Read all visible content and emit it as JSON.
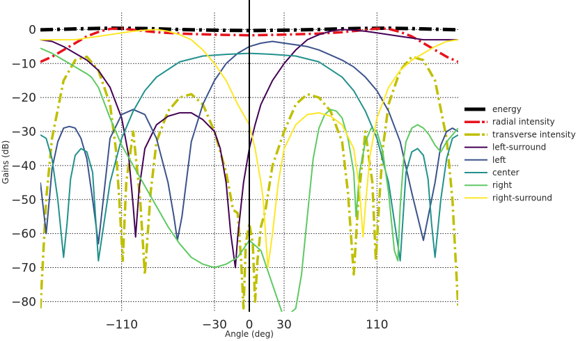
{
  "chart_data": {
    "type": "line",
    "title": "",
    "xlabel": "Angle (deg)",
    "ylabel": "Gains (dB)",
    "xlim": [
      -180,
      180
    ],
    "ylim": [
      -83,
      5
    ],
    "xticks": [
      -110,
      -30,
      0,
      30,
      110
    ],
    "yticks": [
      0,
      -10,
      -20,
      -30,
      -40,
      -50,
      -60,
      -70,
      -80
    ],
    "xtick_labels": [
      "−110",
      "−30",
      "0",
      "30",
      "110"
    ],
    "ytick_labels": [
      "0",
      "−10",
      "−20",
      "−30",
      "−40",
      "−50",
      "−60",
      "−70",
      "−80"
    ],
    "grid": true,
    "legend_position": "right",
    "series": [
      {
        "name": "energy",
        "color": "#000000",
        "style": "dashdot",
        "width": 5,
        "x": [
          -180,
          -150,
          -120,
          -90,
          -60,
          -30,
          0,
          30,
          60,
          90,
          120,
          150,
          180
        ],
        "y": [
          -0.1,
          0.2,
          0.4,
          0.3,
          0.0,
          -0.2,
          -0.3,
          -0.2,
          0.0,
          0.3,
          0.4,
          0.2,
          -0.1
        ]
      },
      {
        "name": "radial intensity",
        "color": "#e8131d",
        "style": "dashdot",
        "width": 3.5,
        "x": [
          -180,
          -170,
          -160,
          -150,
          -140,
          -130,
          -120,
          -110,
          -100,
          -80,
          -60,
          -30,
          0,
          30,
          60,
          80,
          100,
          110,
          120,
          130,
          140,
          150,
          160,
          170,
          180
        ],
        "y": [
          -9.5,
          -8.0,
          -6.0,
          -4.0,
          -2.0,
          -0.7,
          0.2,
          0.3,
          -0.1,
          -0.8,
          -1.2,
          -1.5,
          -1.7,
          -1.5,
          -1.2,
          -0.8,
          -0.1,
          0.3,
          0.2,
          -0.7,
          -2.0,
          -4.0,
          -6.0,
          -8.0,
          -9.5
        ]
      },
      {
        "name": "transverse intensity",
        "color": "#bfbf00",
        "style": "dashdot",
        "width": 3.5,
        "x": [
          -180,
          -175,
          -170,
          -160,
          -150,
          -140,
          -130,
          -120,
          -115,
          -112,
          -109,
          -106,
          -100,
          -94,
          -90,
          -85,
          -80,
          -70,
          -60,
          -50,
          -40,
          -30,
          -20,
          -14,
          -10,
          -7,
          -5,
          -3,
          0,
          3,
          5,
          7,
          10,
          14,
          20,
          30,
          40,
          50,
          60,
          70,
          80,
          85,
          90,
          94,
          100,
          106,
          109,
          112,
          115,
          120,
          130,
          140,
          150,
          160,
          170,
          175,
          180
        ],
        "y": [
          -82,
          -50,
          -32,
          -15,
          -9,
          -8,
          -12,
          -22,
          -35,
          -50,
          -68,
          -45,
          -30,
          -50,
          -72,
          -48,
          -33,
          -24,
          -20,
          -19,
          -22,
          -30,
          -42,
          -53,
          -54,
          -68,
          -82,
          -63,
          -57,
          -63,
          -80,
          -68,
          -58,
          -53,
          -40,
          -30,
          -22,
          -19,
          -20,
          -24,
          -33,
          -48,
          -72,
          -50,
          -30,
          -45,
          -68,
          -50,
          -35,
          -22,
          -12,
          -8,
          -9,
          -15,
          -32,
          -50,
          -82
        ]
      },
      {
        "name": "left-surround",
        "color": "#440154",
        "style": "solid",
        "width": 2,
        "x": [
          -180,
          -170,
          -160,
          -150,
          -140,
          -130,
          -120,
          -110,
          -104,
          -100,
          -98,
          -95,
          -90,
          -80,
          -70,
          -60,
          -50,
          -40,
          -30,
          -25,
          -20,
          -16,
          -12,
          -10,
          -5,
          0,
          5,
          10,
          20,
          30,
          40,
          50,
          60,
          70,
          80,
          90,
          100,
          110,
          120,
          130,
          140,
          150,
          160,
          170,
          180
        ],
        "y": [
          -3,
          -3.5,
          -5,
          -7,
          -9,
          -12,
          -17,
          -26,
          -37,
          -52,
          -61,
          -47,
          -35,
          -28,
          -25.5,
          -24.5,
          -24.5,
          -26.5,
          -30,
          -35,
          -45,
          -60,
          -70,
          -61,
          -45,
          -35,
          -28,
          -22,
          -15,
          -10,
          -6,
          -3,
          -1.5,
          -0.5,
          0,
          -0.2,
          -0.5,
          -1,
          -1.5,
          -2,
          -2.5,
          -3,
          -3,
          -3,
          -3
        ]
      },
      {
        "name": "left",
        "color": "#3b528b",
        "style": "solid",
        "width": 2,
        "x": [
          -180,
          -175,
          -172,
          -170,
          -165,
          -160,
          -155,
          -150,
          -145,
          -140,
          -135,
          -130,
          -120,
          -110,
          -100,
          -90,
          -80,
          -70,
          -65,
          -62,
          -58,
          -50,
          -40,
          -30,
          -20,
          -10,
          0,
          10,
          20,
          30,
          40,
          50,
          60,
          70,
          80,
          90,
          100,
          110,
          120,
          130,
          140,
          150,
          160,
          165,
          170,
          175,
          180
        ],
        "y": [
          -45,
          -60,
          -49,
          -41,
          -33,
          -29,
          -28.5,
          -29,
          -32,
          -38,
          -50,
          -63,
          -32,
          -25,
          -23.5,
          -25,
          -32,
          -45,
          -55,
          -62,
          -55,
          -33,
          -22,
          -15,
          -10,
          -7,
          -5,
          -4,
          -3.5,
          -4,
          -4.5,
          -5,
          -6,
          -7.5,
          -9,
          -11,
          -14,
          -18,
          -24,
          -33,
          -48,
          -62,
          -45,
          -34,
          -30,
          -29,
          -30
        ]
      },
      {
        "name": "center",
        "color": "#21918c",
        "style": "solid",
        "width": 2,
        "x": [
          -180,
          -175,
          -170,
          -165,
          -160,
          -157,
          -154,
          -150,
          -145,
          -140,
          -135,
          -130,
          -120,
          -110,
          -100,
          -90,
          -80,
          -60,
          -40,
          -20,
          0,
          20,
          40,
          60,
          80,
          90,
          100,
          110,
          120,
          130,
          135,
          140,
          145,
          150,
          154,
          157,
          160,
          165,
          170,
          175,
          180
        ],
        "y": [
          -31,
          -32,
          -38,
          -50,
          -67,
          -57,
          -44,
          -37,
          -35,
          -36,
          -42,
          -68,
          -45,
          -32,
          -24,
          -18,
          -14,
          -9.5,
          -7.8,
          -7.3,
          -7,
          -7.3,
          -7.8,
          -9.5,
          -14,
          -18,
          -24,
          -32,
          -45,
          -68,
          -42,
          -36,
          -35,
          -37,
          -44,
          -57,
          -67,
          -50,
          -38,
          -32,
          -31
        ]
      },
      {
        "name": "right",
        "color": "#5ec962",
        "style": "solid",
        "width": 2,
        "x": [
          -180,
          -170,
          -165,
          -160,
          -155,
          -150,
          -145,
          -140,
          -136,
          -130,
          -120,
          -110,
          -100,
          -90,
          -80,
          -70,
          -60,
          -50,
          -40,
          -30,
          -20,
          -10,
          0,
          10,
          20,
          30,
          40,
          45,
          50,
          55,
          60,
          65,
          70,
          75,
          80,
          85,
          90,
          92,
          95,
          100,
          105,
          110,
          115,
          120,
          125,
          128,
          130,
          133,
          135,
          140,
          145,
          150,
          155,
          160,
          165,
          170,
          180
        ],
        "y": [
          -5.5,
          -7,
          -8,
          -9,
          -10,
          -11,
          -12,
          -13,
          -14,
          -17,
          -26,
          -34,
          -40,
          -46,
          -52,
          -58,
          -63,
          -67,
          -69,
          -70,
          -69,
          -67,
          -62,
          -65,
          -75,
          -85,
          -82,
          -72,
          -55,
          -38,
          -29,
          -25,
          -23.5,
          -24,
          -26,
          -32,
          -42,
          -55,
          -42,
          -33,
          -29,
          -30,
          -36,
          -48,
          -65,
          -68,
          -52,
          -38,
          -33,
          -29,
          -28,
          -29,
          -31,
          -34,
          -36,
          -33,
          -29
        ]
      },
      {
        "name": "right-surround",
        "color": "#fde725",
        "style": "solid",
        "width": 2,
        "x": [
          -180,
          -170,
          -160,
          -150,
          -140,
          -130,
          -120,
          -110,
          -100,
          -90,
          -80,
          -70,
          -60,
          -50,
          -40,
          -30,
          -20,
          -10,
          0,
          5,
          10,
          12,
          16,
          20,
          25,
          30,
          40,
          50,
          60,
          70,
          80,
          90,
          95,
          98,
          100,
          104,
          110,
          120,
          130,
          140,
          150,
          160,
          170,
          180
        ],
        "y": [
          -3,
          -3,
          -3,
          -3,
          -2.5,
          -2,
          -1.5,
          -1,
          -0.5,
          -0.2,
          0,
          -0.5,
          -1.5,
          -3,
          -6,
          -10,
          -15,
          -22,
          -28,
          -35,
          -45,
          -50,
          -70,
          -60,
          -45,
          -35,
          -28,
          -25,
          -24.5,
          -25.5,
          -28,
          -35,
          -47,
          -61,
          -52,
          -37,
          -26,
          -17,
          -12,
          -9,
          -7,
          -5,
          -3.5,
          -3
        ]
      }
    ]
  }
}
